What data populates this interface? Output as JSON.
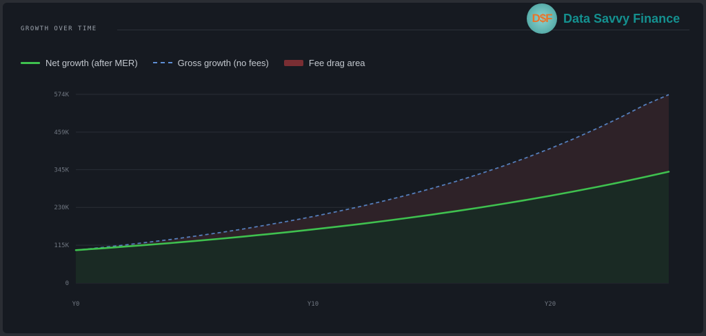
{
  "section": {
    "title": "GROWTH OVER TIME"
  },
  "brand": {
    "logo_text": "D$F",
    "name": "Data Savvy Finance"
  },
  "legend": {
    "net": "Net growth (after MER)",
    "gross": "Gross growth (no fees)",
    "fee": "Fee drag area"
  },
  "colors": {
    "net": "#3fc14f",
    "gross": "#5e8fd6",
    "fee": "#7a2e33",
    "net_fill": "#1a2a24",
    "fee_fill": "#2e2228",
    "grid": "#2a2f37"
  },
  "chart_data": {
    "type": "area",
    "title": "",
    "xlabel": "",
    "ylabel": "",
    "x": [
      0,
      1,
      2,
      3,
      4,
      5,
      6,
      7,
      8,
      9,
      10,
      11,
      12,
      13,
      14,
      15,
      16,
      17,
      18,
      19,
      20,
      21,
      22,
      23,
      24,
      25
    ],
    "series": [
      {
        "name": "Net growth (after MER)",
        "values": [
          100000,
          105000,
          110300,
          115800,
          121600,
          127600,
          134000,
          140700,
          147800,
          155200,
          162900,
          171100,
          179600,
          188600,
          198000,
          207900,
          218300,
          229200,
          240700,
          252700,
          265300,
          278600,
          292500,
          307100,
          322600,
          338600
        ]
      },
      {
        "name": "Gross growth (no fees)",
        "values": [
          100000,
          107300,
          115100,
          123500,
          132500,
          142200,
          152600,
          163700,
          175700,
          188500,
          202200,
          217000,
          232800,
          249800,
          268000,
          287600,
          308600,
          331100,
          355300,
          381200,
          409100,
          438900,
          471000,
          505300,
          542200,
          573000
        ]
      }
    ],
    "fill_between": "Fee drag area",
    "yticks": [
      "0",
      "115K",
      "230K",
      "345K",
      "459K",
      "574K"
    ],
    "xticks": [
      "Y0",
      "Y10",
      "Y20"
    ],
    "ylim": [
      0,
      574000
    ],
    "xlim": [
      0,
      25
    ],
    "grid": true,
    "legend_position": "top-left"
  }
}
